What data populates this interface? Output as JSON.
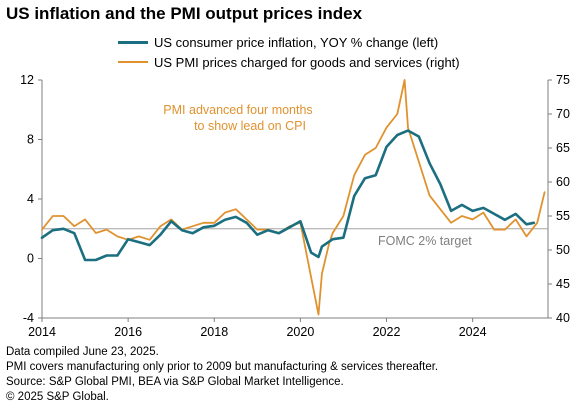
{
  "title": "US inflation and the PMI output prices index",
  "footer": {
    "line1": "Data compiled June 23, 2025.",
    "line2": "PMI covers manufacturing only prior to 2009 but manufacturing & services thereafter.",
    "line3": "Source: S&P Global PMI, BEA via S&P Global Market Intelligence.",
    "line4": "© 2025 S&P Global."
  },
  "chart_data": {
    "type": "line",
    "legend_position": "top",
    "grid": false,
    "x_ticks": [
      "2014",
      "2016",
      "2018",
      "2020",
      "2022",
      "2024"
    ],
    "y_left_ticks": [
      "-4",
      "0",
      "4",
      "8",
      "12"
    ],
    "y_right_ticks": [
      "40",
      "45",
      "50",
      "55",
      "60",
      "65",
      "70",
      "75"
    ],
    "ylim_left": [
      -4,
      12
    ],
    "ylim_right": [
      40,
      75
    ],
    "xlim": [
      2014.0,
      2025.75
    ],
    "reference_line": {
      "value_left": 2,
      "label": "FOMC 2% target"
    },
    "annotation": {
      "line1": "PMI advanced four months",
      "line2": "to show lead on CPI"
    },
    "colors": {
      "cpi": "#1b6f80",
      "pmi": "#e0922f",
      "axis": "#7f7f7f"
    },
    "series": [
      {
        "name": "US consumer price inflation, YOY % change (left)",
        "axis": "left",
        "x": [
          2014.0,
          2014.25,
          2014.5,
          2014.75,
          2015.0,
          2015.25,
          2015.5,
          2015.75,
          2016.0,
          2016.25,
          2016.5,
          2016.75,
          2017.0,
          2017.25,
          2017.5,
          2017.75,
          2018.0,
          2018.25,
          2018.5,
          2018.75,
          2019.0,
          2019.25,
          2019.5,
          2019.75,
          2020.0,
          2020.25,
          2020.42,
          2020.5,
          2020.75,
          2021.0,
          2021.25,
          2021.5,
          2021.75,
          2022.0,
          2022.25,
          2022.5,
          2022.75,
          2023.0,
          2023.25,
          2023.5,
          2023.75,
          2024.0,
          2024.25,
          2024.5,
          2024.75,
          2025.0,
          2025.25,
          2025.42
        ],
        "values": [
          1.4,
          1.9,
          2.0,
          1.7,
          -0.1,
          -0.1,
          0.2,
          0.2,
          1.3,
          1.1,
          0.9,
          1.6,
          2.5,
          1.9,
          1.7,
          2.1,
          2.2,
          2.6,
          2.8,
          2.4,
          1.6,
          1.9,
          1.7,
          2.1,
          2.5,
          0.4,
          0.1,
          0.8,
          1.3,
          1.4,
          4.2,
          5.4,
          5.6,
          7.5,
          8.3,
          8.6,
          8.2,
          6.4,
          5.0,
          3.2,
          3.6,
          3.2,
          3.4,
          3.0,
          2.6,
          3.0,
          2.3,
          2.4
        ]
      },
      {
        "name": "US PMI prices charged for goods and services (right)",
        "axis": "right",
        "x": [
          2014.0,
          2014.25,
          2014.5,
          2014.75,
          2015.0,
          2015.25,
          2015.5,
          2015.75,
          2016.0,
          2016.25,
          2016.5,
          2016.75,
          2017.0,
          2017.25,
          2017.5,
          2017.75,
          2018.0,
          2018.25,
          2018.5,
          2018.75,
          2019.0,
          2019.25,
          2019.5,
          2019.75,
          2020.0,
          2020.25,
          2020.42,
          2020.5,
          2020.67,
          2020.75,
          2021.0,
          2021.25,
          2021.5,
          2021.75,
          2022.0,
          2022.25,
          2022.42,
          2022.5,
          2022.75,
          2023.0,
          2023.25,
          2023.5,
          2023.75,
          2024.0,
          2024.25,
          2024.5,
          2024.75,
          2025.0,
          2025.25,
          2025.5,
          2025.67
        ],
        "values": [
          53.0,
          55.0,
          55.0,
          53.5,
          54.5,
          52.5,
          53.0,
          52.0,
          51.5,
          52.0,
          51.5,
          53.5,
          54.5,
          53.0,
          53.5,
          54.0,
          54.0,
          55.5,
          56.0,
          54.5,
          53.0,
          53.0,
          52.5,
          53.5,
          54.0,
          46.0,
          40.5,
          46.5,
          51.0,
          52.5,
          55.0,
          61.0,
          64.0,
          65.0,
          68.0,
          70.0,
          75.0,
          68.0,
          63.0,
          58.0,
          56.0,
          54.0,
          55.0,
          54.5,
          55.5,
          53.0,
          53.0,
          54.5,
          52.0,
          54.0,
          58.5
        ]
      }
    ]
  }
}
